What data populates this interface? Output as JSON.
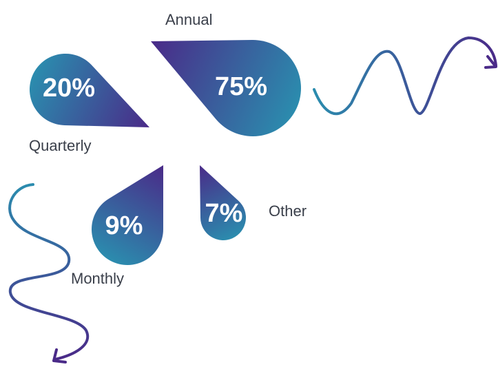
{
  "chart_data": {
    "type": "teardrop",
    "categories": [
      "Quarterly",
      "Annual",
      "Monthly",
      "Other"
    ],
    "values": [
      20,
      75,
      9,
      7
    ],
    "value_labels": [
      "20%",
      "75%",
      "9%",
      "7%"
    ],
    "colors": [
      "#2b8cae",
      "#4a2a88"
    ]
  }
}
